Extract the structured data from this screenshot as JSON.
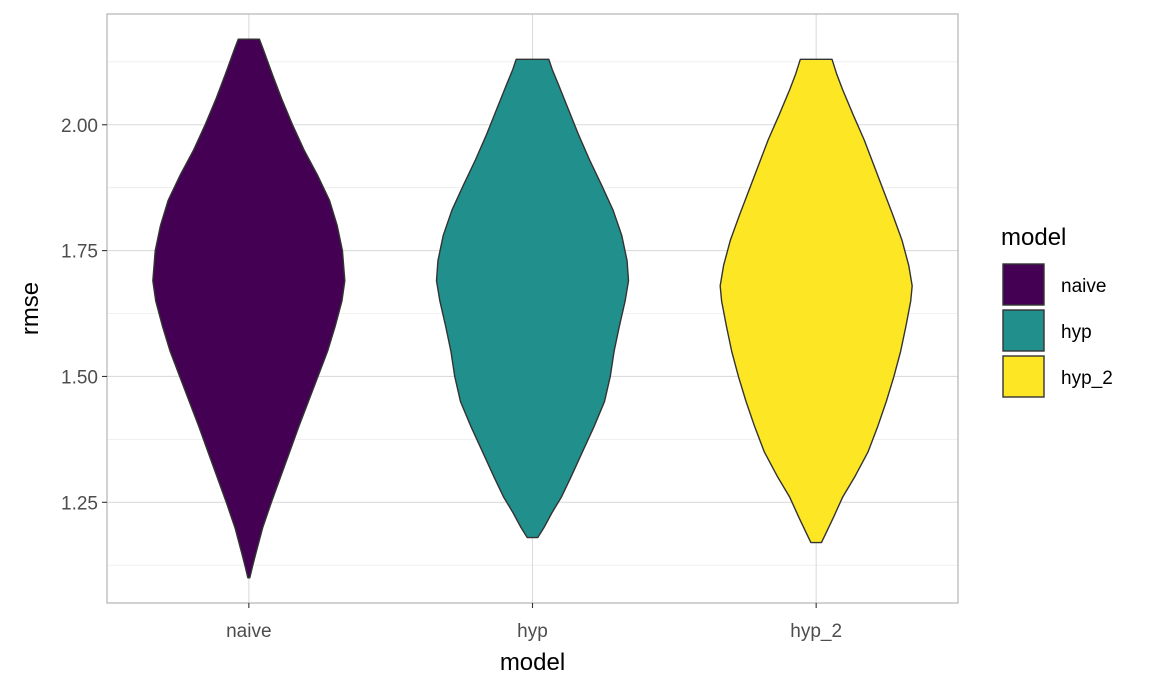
{
  "chart_data": {
    "type": "violin",
    "xlabel": "model",
    "ylabel": "rmse",
    "categories": [
      "naive",
      "hyp",
      "hyp_2"
    ],
    "colors": [
      "#440154",
      "#21908C",
      "#FDE725"
    ],
    "outline_color": "#333333",
    "ylim": [
      1.05,
      2.22
    ],
    "y_ticks": [
      1.25,
      1.5,
      1.75,
      2.0
    ],
    "y_tick_labels": [
      "1.25",
      "1.50",
      "1.75",
      "2.00"
    ],
    "grid": true,
    "legend": {
      "title": "model",
      "placement": "right",
      "entries": [
        "naive",
        "hyp",
        "hyp_2"
      ]
    },
    "series": [
      {
        "name": "naive",
        "min": 1.1,
        "max": 2.17,
        "profile": [
          [
            1.1,
            0.01
          ],
          [
            1.12,
            0.035
          ],
          [
            1.15,
            0.075
          ],
          [
            1.2,
            0.145
          ],
          [
            1.25,
            0.235
          ],
          [
            1.3,
            0.33
          ],
          [
            1.35,
            0.425
          ],
          [
            1.4,
            0.52
          ],
          [
            1.45,
            0.62
          ],
          [
            1.5,
            0.72
          ],
          [
            1.55,
            0.82
          ],
          [
            1.6,
            0.9
          ],
          [
            1.65,
            0.97
          ],
          [
            1.69,
            1.0
          ],
          [
            1.75,
            0.975
          ],
          [
            1.8,
            0.92
          ],
          [
            1.85,
            0.84
          ],
          [
            1.9,
            0.715
          ],
          [
            1.95,
            0.575
          ],
          [
            2.0,
            0.455
          ],
          [
            2.05,
            0.345
          ],
          [
            2.1,
            0.245
          ],
          [
            2.15,
            0.15
          ],
          [
            2.17,
            0.11
          ]
        ]
      },
      {
        "name": "hyp",
        "min": 1.18,
        "max": 2.13,
        "profile": [
          [
            1.18,
            0.055
          ],
          [
            1.2,
            0.12
          ],
          [
            1.23,
            0.205
          ],
          [
            1.26,
            0.3
          ],
          [
            1.3,
            0.4
          ],
          [
            1.35,
            0.52
          ],
          [
            1.4,
            0.64
          ],
          [
            1.45,
            0.75
          ],
          [
            1.5,
            0.81
          ],
          [
            1.55,
            0.85
          ],
          [
            1.6,
            0.905
          ],
          [
            1.65,
            0.965
          ],
          [
            1.69,
            1.0
          ],
          [
            1.73,
            0.985
          ],
          [
            1.78,
            0.93
          ],
          [
            1.83,
            0.84
          ],
          [
            1.88,
            0.72
          ],
          [
            1.93,
            0.595
          ],
          [
            1.98,
            0.48
          ],
          [
            2.03,
            0.375
          ],
          [
            2.08,
            0.27
          ],
          [
            2.11,
            0.205
          ],
          [
            2.13,
            0.17
          ]
        ]
      },
      {
        "name": "hyp_2",
        "min": 1.17,
        "max": 2.13,
        "profile": [
          [
            1.17,
            0.055
          ],
          [
            1.19,
            0.105
          ],
          [
            1.22,
            0.18
          ],
          [
            1.26,
            0.275
          ],
          [
            1.3,
            0.4
          ],
          [
            1.35,
            0.54
          ],
          [
            1.4,
            0.64
          ],
          [
            1.45,
            0.73
          ],
          [
            1.5,
            0.81
          ],
          [
            1.55,
            0.88
          ],
          [
            1.6,
            0.935
          ],
          [
            1.65,
            0.985
          ],
          [
            1.68,
            1.0
          ],
          [
            1.72,
            0.965
          ],
          [
            1.77,
            0.895
          ],
          [
            1.82,
            0.8
          ],
          [
            1.87,
            0.7
          ],
          [
            1.92,
            0.6
          ],
          [
            1.97,
            0.5
          ],
          [
            2.02,
            0.385
          ],
          [
            2.07,
            0.275
          ],
          [
            2.1,
            0.215
          ],
          [
            2.13,
            0.165
          ]
        ]
      }
    ]
  }
}
